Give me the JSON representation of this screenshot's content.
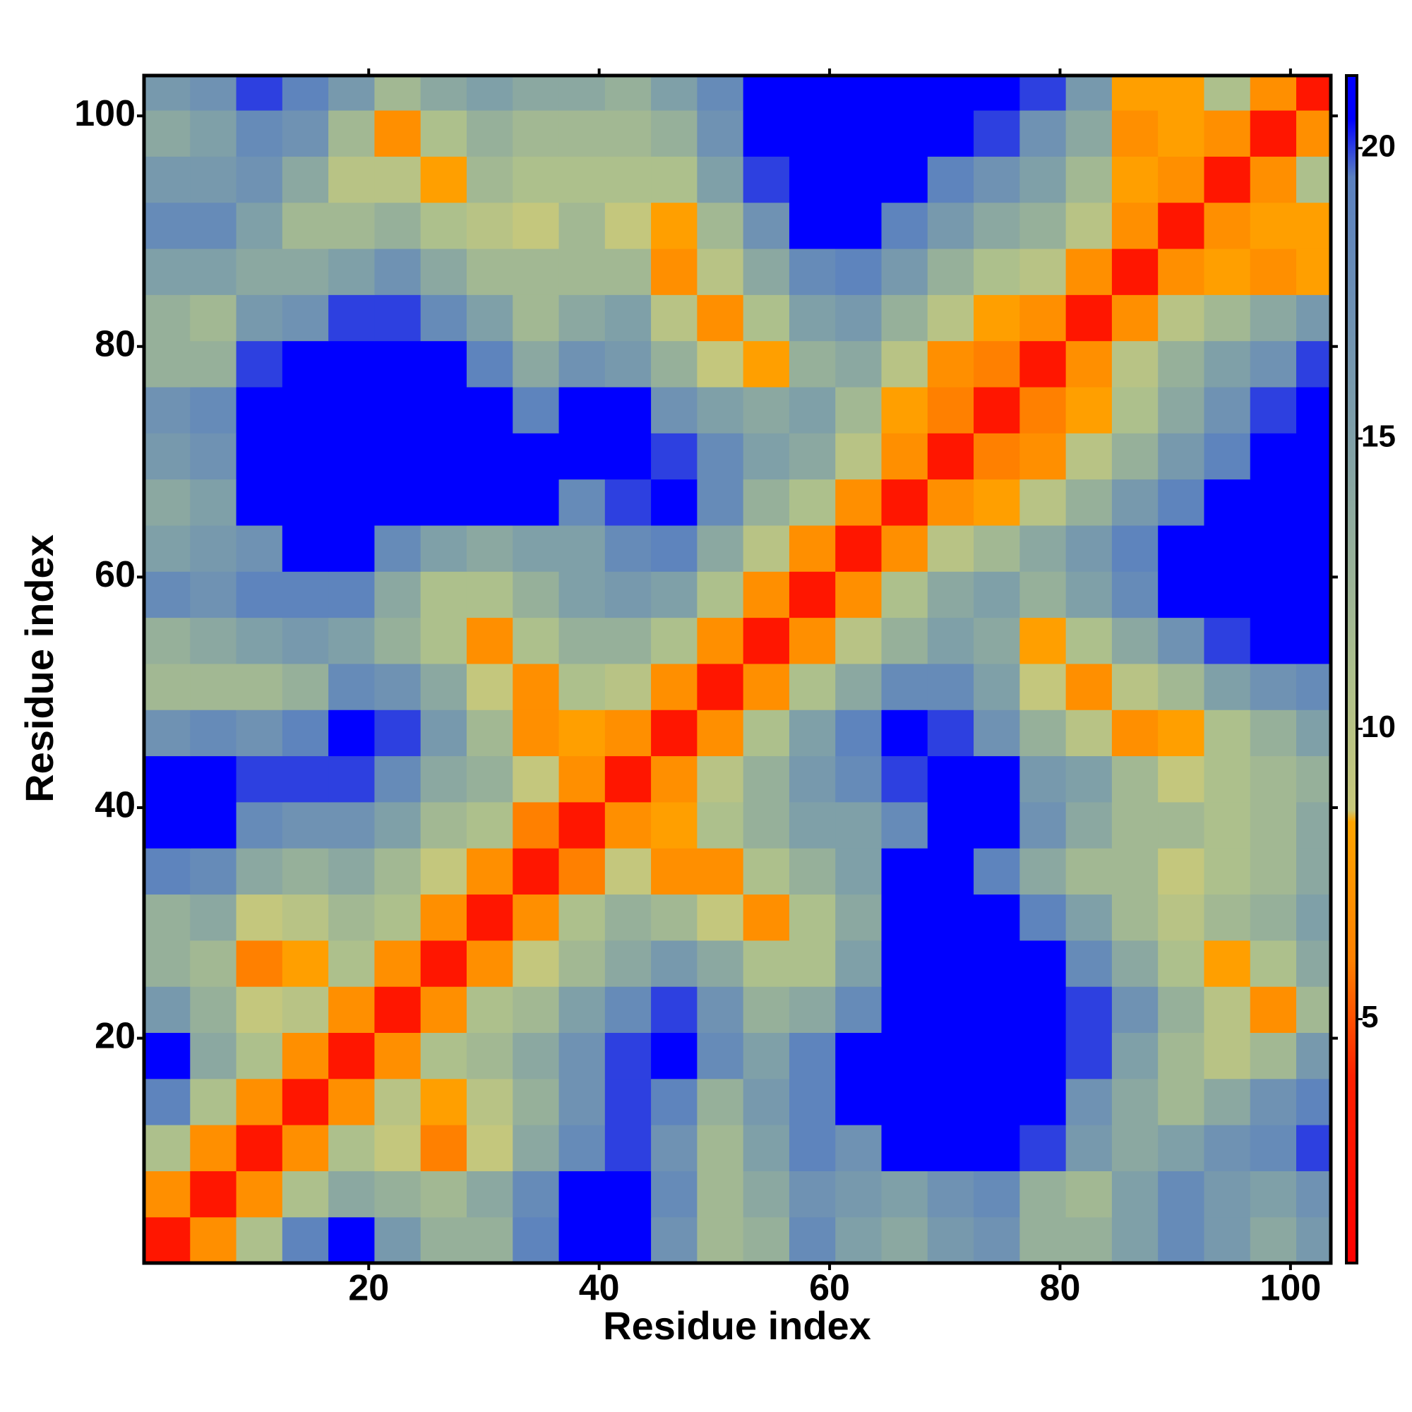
{
  "chart_data": {
    "type": "heatmap",
    "xlabel": "Residue index",
    "ylabel": "Residue index",
    "x_bins": [
      0.5,
      4.5,
      8.5,
      12.5,
      16.5,
      20.5,
      24.5,
      28.5,
      32.5,
      36.5,
      40.5,
      44.5,
      48.5,
      52.5,
      56.5,
      60.5,
      64.5,
      68.5,
      72.5,
      76.5,
      80.5,
      84.5,
      88.5,
      92.5,
      96.5,
      100.5,
      103.5
    ],
    "y_bins": [
      0.5,
      4.5,
      8.5,
      12.5,
      16.5,
      20.5,
      24.5,
      28.5,
      32.5,
      36.5,
      40.5,
      44.5,
      48.5,
      52.5,
      56.5,
      60.5,
      64.5,
      68.5,
      72.5,
      76.5,
      80.5,
      84.5,
      88.5,
      92.5,
      96.5,
      100.5,
      103.5
    ],
    "values": [
      [
        3,
        7,
        11,
        19,
        21,
        16,
        13,
        13,
        19,
        21,
        21,
        17,
        12,
        13,
        18,
        15,
        14,
        16,
        17,
        13,
        13,
        15,
        18,
        16,
        14,
        16
      ],
      [
        7,
        3,
        7,
        11,
        14,
        13,
        12,
        14,
        18,
        21,
        21,
        18,
        12,
        14,
        17,
        16,
        15,
        17,
        18,
        13,
        12,
        15,
        18,
        16,
        15,
        17
      ],
      [
        11,
        7,
        3,
        7,
        11,
        9,
        6,
        9,
        14,
        18,
        20,
        17,
        12,
        15,
        19,
        17,
        21,
        21,
        21,
        20,
        16,
        14,
        15,
        17,
        18,
        20
      ],
      [
        19,
        11,
        7,
        3,
        7,
        10,
        8,
        10,
        13,
        17,
        20,
        19,
        13,
        16,
        19,
        21,
        21,
        21,
        21,
        21,
        17,
        14,
        12,
        14,
        17,
        19
      ],
      [
        21,
        14,
        11,
        7,
        3,
        7,
        11,
        12,
        14,
        17,
        20,
        21,
        18,
        15,
        19,
        21,
        21,
        21,
        21,
        21,
        20,
        15,
        12,
        10,
        12,
        16
      ],
      [
        16,
        13,
        9,
        10,
        7,
        3,
        7,
        11,
        12,
        15,
        18,
        20,
        17,
        13,
        14,
        18,
        21,
        21,
        21,
        21,
        20,
        17,
        13,
        10,
        7,
        12
      ],
      [
        13,
        12,
        6,
        8,
        11,
        7,
        3,
        7,
        9,
        12,
        14,
        16,
        14,
        11,
        11,
        15,
        21,
        21,
        21,
        21,
        18,
        14,
        11,
        8,
        11,
        14
      ],
      [
        13,
        14,
        9,
        10,
        12,
        11,
        7,
        3,
        7,
        11,
        13,
        12,
        9,
        7,
        11,
        14,
        21,
        21,
        21,
        19,
        15,
        12,
        10,
        12,
        13,
        15
      ],
      [
        19,
        18,
        14,
        13,
        14,
        12,
        9,
        7,
        3,
        6,
        9,
        7,
        7,
        11,
        13,
        15,
        21,
        21,
        19,
        14,
        12,
        12,
        9,
        11,
        12,
        14
      ],
      [
        21,
        21,
        18,
        17,
        17,
        15,
        12,
        11,
        6,
        3,
        7,
        8,
        11,
        13,
        15,
        15,
        18,
        21,
        21,
        17,
        14,
        12,
        12,
        11,
        12,
        14
      ],
      [
        21,
        21,
        20,
        20,
        20,
        18,
        14,
        13,
        9,
        7,
        3,
        7,
        10,
        13,
        16,
        18,
        20,
        21,
        21,
        16,
        15,
        12,
        9,
        11,
        12,
        13
      ],
      [
        17,
        18,
        17,
        19,
        21,
        20,
        16,
        12,
        7,
        8,
        7,
        3,
        7,
        11,
        15,
        19,
        21,
        20,
        17,
        13,
        10,
        7,
        8,
        11,
        13,
        15
      ],
      [
        12,
        12,
        12,
        13,
        18,
        17,
        14,
        9,
        7,
        11,
        10,
        7,
        3,
        7,
        11,
        14,
        18,
        18,
        15,
        9,
        7,
        10,
        12,
        15,
        17,
        18
      ],
      [
        13,
        14,
        15,
        16,
        15,
        13,
        11,
        7,
        11,
        13,
        13,
        11,
        7,
        3,
        7,
        10,
        13,
        15,
        14,
        8,
        11,
        14,
        17,
        20,
        21,
        21
      ],
      [
        18,
        17,
        19,
        19,
        19,
        14,
        11,
        11,
        13,
        15,
        16,
        15,
        11,
        7,
        3,
        7,
        11,
        14,
        15,
        13,
        15,
        18,
        21,
        21,
        21,
        21
      ],
      [
        15,
        16,
        17,
        21,
        21,
        18,
        15,
        14,
        15,
        15,
        18,
        19,
        14,
        10,
        7,
        3,
        7,
        10,
        12,
        14,
        16,
        19,
        21,
        21,
        21,
        21
      ],
      [
        14,
        15,
        21,
        21,
        21,
        21,
        21,
        21,
        21,
        18,
        20,
        21,
        18,
        13,
        11,
        7,
        3,
        7,
        8,
        10,
        13,
        16,
        19,
        21,
        21,
        21
      ],
      [
        16,
        17,
        21,
        21,
        21,
        21,
        21,
        21,
        21,
        21,
        21,
        20,
        18,
        15,
        14,
        10,
        7,
        3,
        6,
        7,
        10,
        13,
        16,
        19,
        21,
        21
      ],
      [
        17,
        18,
        21,
        21,
        21,
        21,
        21,
        21,
        19,
        21,
        21,
        17,
        15,
        14,
        15,
        12,
        8,
        6,
        3,
        6,
        8,
        11,
        14,
        17,
        20,
        21
      ],
      [
        13,
        13,
        20,
        21,
        21,
        21,
        21,
        19,
        14,
        17,
        16,
        13,
        9,
        8,
        13,
        14,
        10,
        7,
        6,
        3,
        7,
        10,
        13,
        15,
        17,
        20
      ],
      [
        13,
        12,
        16,
        17,
        20,
        20,
        18,
        15,
        12,
        14,
        15,
        10,
        7,
        11,
        15,
        16,
        13,
        10,
        8,
        7,
        3,
        7,
        10,
        12,
        14,
        16
      ],
      [
        15,
        15,
        14,
        14,
        15,
        17,
        14,
        12,
        12,
        12,
        12,
        7,
        10,
        14,
        18,
        19,
        16,
        13,
        11,
        10,
        7,
        3,
        7,
        8,
        7,
        8
      ],
      [
        18,
        18,
        15,
        12,
        12,
        13,
        11,
        10,
        9,
        12,
        9,
        8,
        12,
        17,
        21,
        21,
        19,
        16,
        14,
        13,
        10,
        7,
        3,
        7,
        8,
        8
      ],
      [
        16,
        16,
        17,
        14,
        10,
        10,
        8,
        12,
        11,
        11,
        11,
        11,
        15,
        20,
        21,
        21,
        21,
        19,
        17,
        15,
        12,
        8,
        7,
        3,
        7,
        11
      ],
      [
        14,
        15,
        18,
        17,
        12,
        7,
        11,
        13,
        12,
        12,
        12,
        13,
        17,
        21,
        21,
        21,
        21,
        21,
        20,
        17,
        14,
        7,
        8,
        7,
        3,
        7
      ],
      [
        16,
        17,
        20,
        19,
        16,
        12,
        14,
        15,
        14,
        14,
        13,
        15,
        18,
        21,
        21,
        21,
        21,
        21,
        21,
        20,
        16,
        8,
        8,
        11,
        7,
        3
      ]
    ],
    "xlim": [
      0.5,
      103.5
    ],
    "ylim": [
      0.5,
      103.5
    ],
    "xticks": [
      20,
      40,
      60,
      80,
      100
    ],
    "yticks": [
      20,
      40,
      60,
      80,
      100
    ],
    "colorbar_lim": [
      0.8,
      21.25
    ],
    "colorbar_ticks": [
      5,
      10,
      15,
      20
    ],
    "colorscale": [
      [
        0.8,
        "#ff0000"
      ],
      [
        4,
        "#ff2000"
      ],
      [
        6,
        "#ff8000"
      ],
      [
        8.4,
        "#ffa500"
      ],
      [
        8.6,
        "#c8c87a"
      ],
      [
        11,
        "#adc08c"
      ],
      [
        15,
        "#7fa0a8"
      ],
      [
        19.5,
        "#5a80c0"
      ],
      [
        20.5,
        "#0000ff"
      ],
      [
        21.25,
        "#0000ff"
      ]
    ]
  }
}
